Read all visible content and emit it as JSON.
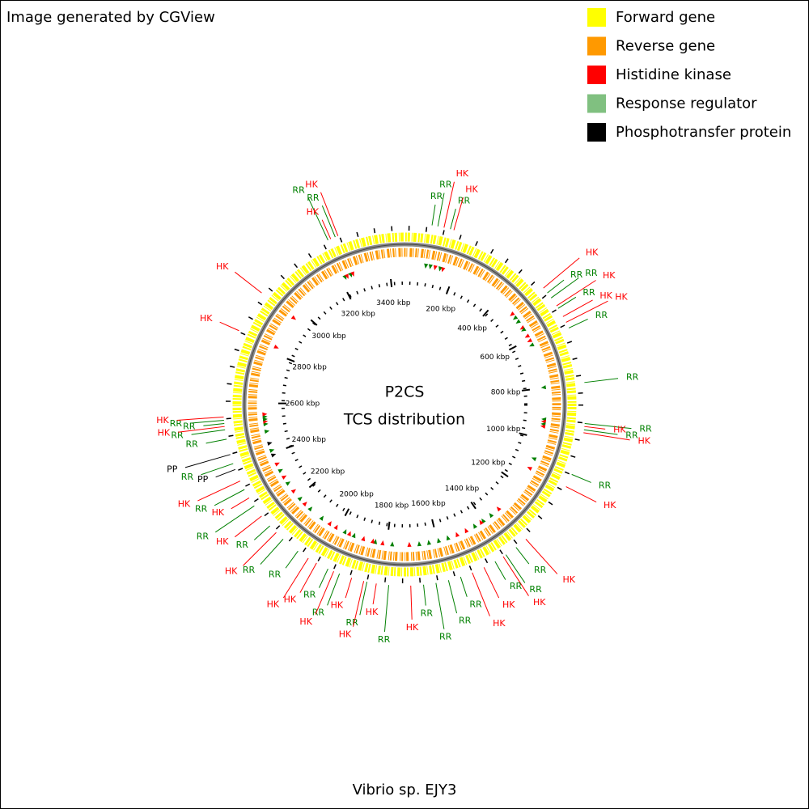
{
  "header": {
    "credit": "Image generated by CGView"
  },
  "legend": [
    {
      "label": "Forward gene",
      "color": "#ffff00"
    },
    {
      "label": "Reverse gene",
      "color": "#ff9900"
    },
    {
      "label": "Histidine kinase",
      "color": "#ff0000"
    },
    {
      "label": "Response regulator",
      "color": "#80c080"
    },
    {
      "label": "Phosphotransfer protein",
      "color": "#000000"
    }
  ],
  "map": {
    "title": "P2CS",
    "subtitle": "TCS distribution",
    "genome": "Vibrio sp. EJY3",
    "length_kbp": 3460,
    "ticks": [
      {
        "value": 200,
        "label": "200 kbp"
      },
      {
        "value": 400,
        "label": "400 kbp"
      },
      {
        "value": 600,
        "label": "600 kbp"
      },
      {
        "value": 800,
        "label": "800 kbp"
      },
      {
        "value": 1000,
        "label": "1000 kbp"
      },
      {
        "value": 1200,
        "label": "1200 kbp"
      },
      {
        "value": 1400,
        "label": "1400 kbp"
      },
      {
        "value": 1600,
        "label": "1600 kbp"
      },
      {
        "value": 1800,
        "label": "1800 kbp"
      },
      {
        "value": 2000,
        "label": "2000 kbp"
      },
      {
        "value": 2200,
        "label": "2200 kbp"
      },
      {
        "value": 2400,
        "label": "2400 kbp"
      },
      {
        "value": 2600,
        "label": "2600 kbp"
      },
      {
        "value": 2800,
        "label": "2800 kbp"
      },
      {
        "value": 3000,
        "label": "3000 kbp"
      },
      {
        "value": 3200,
        "label": "3200 kbp"
      },
      {
        "value": 3400,
        "label": "3400 kbp"
      }
    ],
    "feature_colors": {
      "HK": "#ff0000",
      "RR": "#008000",
      "PP": "#000000"
    },
    "features": [
      {
        "label": "RR",
        "kbp": 84
      },
      {
        "label": "RR",
        "kbp": 102
      },
      {
        "label": "HK",
        "kbp": 121
      },
      {
        "label": "RR",
        "kbp": 141
      },
      {
        "label": "HK",
        "kbp": 152
      },
      {
        "label": "HK",
        "kbp": 481
      },
      {
        "label": "RR",
        "kbp": 500
      },
      {
        "label": "RR",
        "kbp": 519
      },
      {
        "label": "HK",
        "kbp": 548
      },
      {
        "label": "RR",
        "kbp": 557
      },
      {
        "label": "HK",
        "kbp": 586
      },
      {
        "label": "HK",
        "kbp": 606
      },
      {
        "label": "RR",
        "kbp": 625
      },
      {
        "label": "RR",
        "kbp": 798
      },
      {
        "label": "RR",
        "kbp": 923
      },
      {
        "label": "HK",
        "kbp": 932
      },
      {
        "label": "RR",
        "kbp": 942
      },
      {
        "label": "HK",
        "kbp": 951
      },
      {
        "label": "RR",
        "kbp": 1083
      },
      {
        "label": "HK",
        "kbp": 1124
      },
      {
        "label": "HK",
        "kbp": 1326
      },
      {
        "label": "RR",
        "kbp": 1365
      },
      {
        "label": "RR",
        "kbp": 1403
      },
      {
        "label": "HK",
        "kbp": 1413
      },
      {
        "label": "RR",
        "kbp": 1442
      },
      {
        "label": "HK",
        "kbp": 1480
      },
      {
        "label": "HK",
        "kbp": 1519
      },
      {
        "label": "RR",
        "kbp": 1557
      },
      {
        "label": "RR",
        "kbp": 1595
      },
      {
        "label": "RR",
        "kbp": 1634
      },
      {
        "label": "RR",
        "kbp": 1672
      },
      {
        "label": "HK",
        "kbp": 1711
      },
      {
        "label": "RR",
        "kbp": 1778
      },
      {
        "label": "HK",
        "kbp": 1816
      },
      {
        "label": "RR",
        "kbp": 1845
      },
      {
        "label": "HK",
        "kbp": 1855
      },
      {
        "label": "HK",
        "kbp": 1893
      },
      {
        "label": "RR",
        "kbp": 1932
      },
      {
        "label": "HK",
        "kbp": 1951
      },
      {
        "label": "RR",
        "kbp": 1970
      },
      {
        "label": "HK",
        "kbp": 2009
      },
      {
        "label": "HK",
        "kbp": 2038
      },
      {
        "label": "RR",
        "kbp": 2076
      },
      {
        "label": "RR",
        "kbp": 2134
      },
      {
        "label": "HK",
        "kbp": 2163
      },
      {
        "label": "RR",
        "kbp": 2191
      },
      {
        "label": "HK",
        "kbp": 2230
      },
      {
        "label": "RR",
        "kbp": 2268
      },
      {
        "label": "HK",
        "kbp": 2297
      },
      {
        "label": "RR",
        "kbp": 2326
      },
      {
        "label": "HK",
        "kbp": 2355
      },
      {
        "label": "PP",
        "kbp": 2393
      },
      {
        "label": "RR",
        "kbp": 2412
      },
      {
        "label": "PP",
        "kbp": 2441
      },
      {
        "label": "RR",
        "kbp": 2489
      },
      {
        "label": "RR",
        "kbp": 2518
      },
      {
        "label": "HK",
        "kbp": 2528
      },
      {
        "label": "RR",
        "kbp": 2537
      },
      {
        "label": "RR",
        "kbp": 2547
      },
      {
        "label": "HK",
        "kbp": 2557
      },
      {
        "label": "HK",
        "kbp": 2826
      },
      {
        "label": "HK",
        "kbp": 2960
      },
      {
        "label": "RR",
        "kbp": 3220
      },
      {
        "label": "HK",
        "kbp": 3229
      },
      {
        "label": "RR",
        "kbp": 3244
      },
      {
        "label": "HK",
        "kbp": 3253
      }
    ]
  }
}
